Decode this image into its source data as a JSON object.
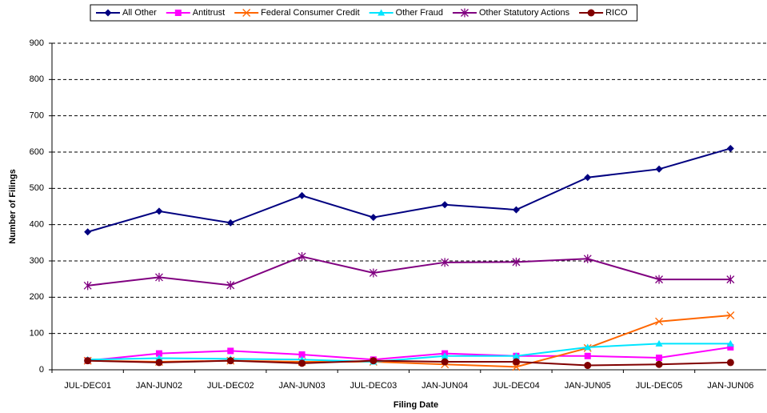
{
  "chart_data": {
    "type": "line",
    "xlabel": "Filing Date",
    "ylabel": "Number of Filings",
    "categories": [
      "JUL-DEC01",
      "JAN-JUN02",
      "JUL-DEC02",
      "JAN-JUN03",
      "JUL-DEC03",
      "JAN-JUN04",
      "JUL-DEC04",
      "JAN-JUN05",
      "JUL-DEC05",
      "JAN-JUN06"
    ],
    "series": [
      {
        "name": "All Other",
        "color": "#000080",
        "marker": "diamond",
        "values": [
          380,
          437,
          405,
          480,
          420,
          455,
          441,
          530,
          553,
          610
        ]
      },
      {
        "name": "Antitrust",
        "color": "#ff00ff",
        "marker": "square",
        "values": [
          25,
          45,
          52,
          42,
          28,
          45,
          38,
          38,
          33,
          62
        ]
      },
      {
        "name": "Federal Consumer Credit",
        "color": "#ff6600",
        "marker": "x",
        "values": [
          25,
          22,
          25,
          22,
          22,
          15,
          8,
          60,
          133,
          150
        ]
      },
      {
        "name": "Other Fraud",
        "color": "#00e5ff",
        "marker": "triangle",
        "values": [
          28,
          32,
          30,
          28,
          22,
          38,
          38,
          62,
          72,
          72
        ]
      },
      {
        "name": "Other Statutory Actions",
        "color": "#800080",
        "marker": "star",
        "values": [
          232,
          255,
          233,
          312,
          267,
          296,
          297,
          306,
          249,
          249
        ]
      },
      {
        "name": "RICO",
        "color": "#800000",
        "marker": "circle",
        "values": [
          25,
          20,
          25,
          18,
          25,
          22,
          22,
          12,
          15,
          20
        ]
      }
    ],
    "ylim": [
      0,
      900
    ],
    "yticks": [
      0,
      100,
      200,
      300,
      400,
      500,
      600,
      700,
      800,
      900
    ],
    "grid": true,
    "legend": "top"
  }
}
